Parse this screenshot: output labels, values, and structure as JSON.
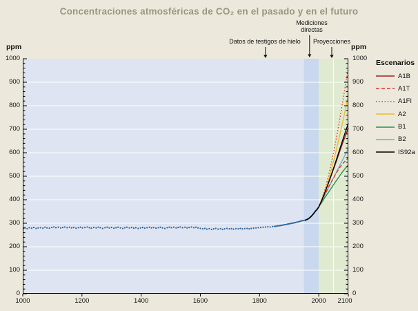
{
  "title": "Concentraciones atmosféricas de CO₂ en el pasado y en el futuro",
  "colors": {
    "page_bg": "#ECE9DC",
    "title_text": "#9A957F",
    "ice_core_region": "#DEE4F1",
    "direct_band": "#C9D8EE",
    "projection_region": "#DFEAD1",
    "gridline": "#FFFFFF",
    "axis": "#000000",
    "scatter_dot": "#30649B"
  },
  "axes": {
    "y_left_label": "ppm",
    "y_right_label": "ppm",
    "y_ticks": [
      0,
      100,
      200,
      300,
      400,
      500,
      600,
      700,
      800,
      900,
      1000
    ],
    "y_minor_step": 20,
    "y_range": [
      0,
      1000
    ],
    "x_ticks": [
      1000,
      1200,
      1400,
      1600,
      1800,
      2000,
      2100
    ],
    "x_range": [
      1000,
      2100
    ],
    "grid_horizontal": [
      100,
      200,
      300,
      400,
      500,
      600,
      700,
      800,
      900
    ],
    "grid_vertical_years": [
      2050
    ]
  },
  "regions": [
    {
      "name": "ice-core-region",
      "from_year": 1000,
      "to_year": 1950,
      "color": "#DEE4F1"
    },
    {
      "name": "direct-measurement-band",
      "from_year": 1950,
      "to_year": 2000,
      "color": "#C9D8EE"
    },
    {
      "name": "projection-region",
      "from_year": 2000,
      "to_year": 2100,
      "color": "#DFEAD1"
    }
  ],
  "annotations": {
    "ice_core": {
      "label": "Datos de testigos de hielo",
      "arrow_year": 1820
    },
    "direct": {
      "label": "Mediciones directas",
      "arrow_year": 1969
    },
    "projections": {
      "label": "Proyecciones",
      "arrow_year": 2044
    }
  },
  "legend": {
    "header": "Escenarios",
    "items": [
      {
        "label": "A1B",
        "color": "#9B2226",
        "dash": "solid"
      },
      {
        "label": "A1T",
        "color": "#D93A2B",
        "dash": "dashed"
      },
      {
        "label": "A1FI",
        "color": "#E8402A",
        "dash": "dotted"
      },
      {
        "label": "A2",
        "color": "#EDBB2F",
        "dash": "solid"
      },
      {
        "label": "B1",
        "color": "#23934A",
        "dash": "solid"
      },
      {
        "label": "B2",
        "color": "#7FA3D7",
        "dash": "solid"
      },
      {
        "label": "IS92a",
        "color": "#000000",
        "dash": "solid"
      }
    ]
  },
  "chart_data": {
    "type": "line",
    "title": "Concentraciones atmosféricas de CO₂ en el pasado y en el futuro",
    "xlabel": "",
    "ylabel": "ppm",
    "xlim": [
      1000,
      2100
    ],
    "ylim": [
      0,
      1000
    ],
    "grid": true,
    "legend_position": "right",
    "scatter_series": {
      "name": "Datos de testigos de hielo",
      "color": "#30649B",
      "points": [
        [
          1002,
          278
        ],
        [
          1008,
          280
        ],
        [
          1015,
          277
        ],
        [
          1022,
          281
        ],
        [
          1030,
          279
        ],
        [
          1037,
          282
        ],
        [
          1045,
          278
        ],
        [
          1052,
          280
        ],
        [
          1060,
          281
        ],
        [
          1068,
          279
        ],
        [
          1075,
          283
        ],
        [
          1082,
          280
        ],
        [
          1090,
          279
        ],
        [
          1098,
          282
        ],
        [
          1105,
          284
        ],
        [
          1112,
          281
        ],
        [
          1120,
          283
        ],
        [
          1128,
          280
        ],
        [
          1135,
          282
        ],
        [
          1142,
          284
        ],
        [
          1150,
          281
        ],
        [
          1158,
          283
        ],
        [
          1165,
          280
        ],
        [
          1172,
          282
        ],
        [
          1180,
          279
        ],
        [
          1188,
          281
        ],
        [
          1195,
          283
        ],
        [
          1202,
          280
        ],
        [
          1210,
          282
        ],
        [
          1218,
          284
        ],
        [
          1225,
          281
        ],
        [
          1232,
          279
        ],
        [
          1240,
          282
        ],
        [
          1248,
          280
        ],
        [
          1255,
          283
        ],
        [
          1262,
          281
        ],
        [
          1270,
          278
        ],
        [
          1278,
          281
        ],
        [
          1285,
          283
        ],
        [
          1292,
          280
        ],
        [
          1300,
          282
        ],
        [
          1308,
          279
        ],
        [
          1315,
          281
        ],
        [
          1322,
          283
        ],
        [
          1330,
          280
        ],
        [
          1338,
          278
        ],
        [
          1345,
          281
        ],
        [
          1352,
          283
        ],
        [
          1360,
          280
        ],
        [
          1368,
          282
        ],
        [
          1375,
          279
        ],
        [
          1382,
          281
        ],
        [
          1390,
          278
        ],
        [
          1398,
          280
        ],
        [
          1405,
          282
        ],
        [
          1412,
          279
        ],
        [
          1420,
          281
        ],
        [
          1428,
          283
        ],
        [
          1435,
          280
        ],
        [
          1442,
          282
        ],
        [
          1450,
          279
        ],
        [
          1458,
          281
        ],
        [
          1465,
          283
        ],
        [
          1472,
          280
        ],
        [
          1480,
          278
        ],
        [
          1488,
          281
        ],
        [
          1495,
          283
        ],
        [
          1502,
          281
        ],
        [
          1510,
          283
        ],
        [
          1518,
          280
        ],
        [
          1525,
          282
        ],
        [
          1532,
          284
        ],
        [
          1540,
          281
        ],
        [
          1548,
          283
        ],
        [
          1555,
          280
        ],
        [
          1562,
          282
        ],
        [
          1570,
          284
        ],
        [
          1578,
          281
        ],
        [
          1585,
          283
        ],
        [
          1592,
          280
        ],
        [
          1600,
          278
        ],
        [
          1608,
          276
        ],
        [
          1615,
          278
        ],
        [
          1622,
          275
        ],
        [
          1630,
          277
        ],
        [
          1638,
          274
        ],
        [
          1645,
          276
        ],
        [
          1652,
          278
        ],
        [
          1660,
          275
        ],
        [
          1668,
          277
        ],
        [
          1675,
          274
        ],
        [
          1682,
          276
        ],
        [
          1690,
          278
        ],
        [
          1698,
          276
        ],
        [
          1705,
          277
        ],
        [
          1712,
          275
        ],
        [
          1720,
          277
        ],
        [
          1728,
          276
        ],
        [
          1735,
          278
        ],
        [
          1742,
          276
        ],
        [
          1750,
          277
        ],
        [
          1758,
          278
        ],
        [
          1765,
          276
        ],
        [
          1772,
          278
        ],
        [
          1780,
          279
        ],
        [
          1788,
          280
        ],
        [
          1796,
          281
        ],
        [
          1804,
          282
        ],
        [
          1812,
          283
        ],
        [
          1820,
          284
        ],
        [
          1828,
          285
        ],
        [
          1836,
          284
        ],
        [
          1844,
          286
        ],
        [
          1850,
          287
        ],
        [
          1854,
          287
        ],
        [
          1858,
          288
        ],
        [
          1862,
          289
        ],
        [
          1866,
          289
        ],
        [
          1870,
          290
        ],
        [
          1874,
          291
        ],
        [
          1878,
          292
        ],
        [
          1882,
          293
        ],
        [
          1886,
          294
        ],
        [
          1890,
          295
        ],
        [
          1894,
          296
        ],
        [
          1898,
          297
        ],
        [
          1902,
          298
        ],
        [
          1906,
          299
        ],
        [
          1910,
          300
        ],
        [
          1914,
          301
        ],
        [
          1918,
          302
        ],
        [
          1922,
          303
        ],
        [
          1926,
          305
        ],
        [
          1930,
          306
        ],
        [
          1934,
          307
        ],
        [
          1938,
          309
        ],
        [
          1942,
          310
        ],
        [
          1946,
          311
        ],
        [
          1950,
          312
        ],
        [
          1954,
          313
        ]
      ]
    },
    "direct_series": {
      "name": "Mediciones directas",
      "color": "#000000",
      "points": [
        [
          1955,
          313
        ],
        [
          1960,
          316
        ],
        [
          1965,
          319
        ],
        [
          1970,
          324
        ],
        [
          1975,
          330
        ],
        [
          1980,
          337
        ],
        [
          1985,
          345
        ],
        [
          1990,
          353
        ],
        [
          1995,
          360
        ],
        [
          2000,
          369
        ]
      ]
    },
    "projection_x": [
      2000,
      2010,
      2020,
      2030,
      2040,
      2050,
      2060,
      2070,
      2080,
      2090,
      2100
    ],
    "series": [
      {
        "name": "A1FI",
        "color": "#E8402A",
        "dash": "dotted",
        "values": [
          369,
          400,
          440,
          487,
          540,
          600,
          665,
          735,
          810,
          885,
          960
        ]
      },
      {
        "name": "A2",
        "color": "#EDBB2F",
        "dash": "solid",
        "values": [
          369,
          398,
          432,
          471,
          515,
          563,
          615,
          669,
          725,
          784,
          845
        ]
      },
      {
        "name": "B2",
        "color": "#7FA3D7",
        "dash": "solid",
        "values": [
          369,
          393,
          418,
          443,
          468,
          493,
          518,
          543,
          568,
          593,
          617
        ]
      },
      {
        "name": "B1",
        "color": "#23934A",
        "dash": "solid",
        "values": [
          369,
          388,
          408,
          426,
          445,
          464,
          482,
          500,
          518,
          534,
          548
        ]
      },
      {
        "name": "A1T",
        "color": "#D93A2B",
        "dash": "dashed",
        "values": [
          369,
          395,
          422,
          446,
          470,
          493,
          515,
          535,
          552,
          566,
          578
        ]
      },
      {
        "name": "A1B",
        "color": "#9B2226",
        "dash": "solid",
        "values": [
          369,
          398,
          430,
          461,
          495,
          530,
          565,
          602,
          638,
          672,
          705
        ]
      },
      {
        "name": "IS92a",
        "color": "#000000",
        "dash": "solid",
        "values": [
          369,
          397,
          428,
          461,
          497,
          534,
          572,
          611,
          650,
          688,
          725
        ]
      }
    ]
  }
}
